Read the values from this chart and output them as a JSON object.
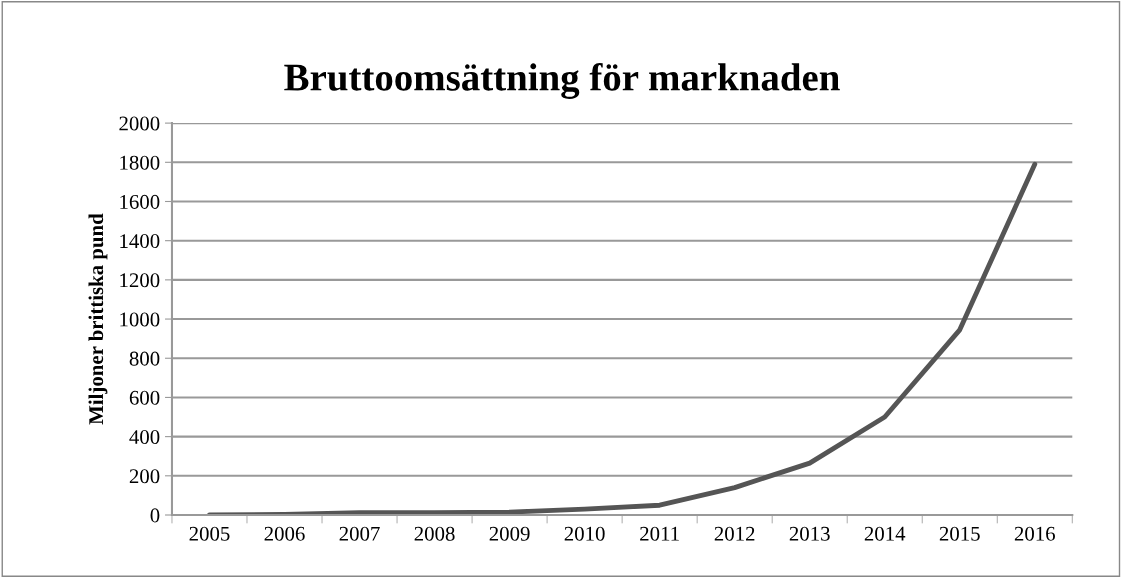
{
  "chart_data": {
    "type": "line",
    "title": "Bruttoomsättning för marknaden",
    "ylabel": "Miljoner brittiska pund",
    "categories": [
      "2005",
      "2006",
      "2007",
      "2008",
      "2009",
      "2010",
      "2011",
      "2012",
      "2013",
      "2014",
      "2015",
      "2016"
    ],
    "series": [
      {
        "color": "#555555",
        "values": [
          0,
          3,
          12,
          12,
          15,
          30,
          50,
          140,
          265,
          500,
          945,
          1790
        ]
      }
    ],
    "ylim": [
      0,
      2000
    ],
    "yticks": [
      0,
      200,
      400,
      600,
      800,
      1000,
      1200,
      1400,
      1600,
      1800,
      2000
    ],
    "grid": "y",
    "legend": false,
    "marker": "none",
    "line_style": "solid"
  }
}
